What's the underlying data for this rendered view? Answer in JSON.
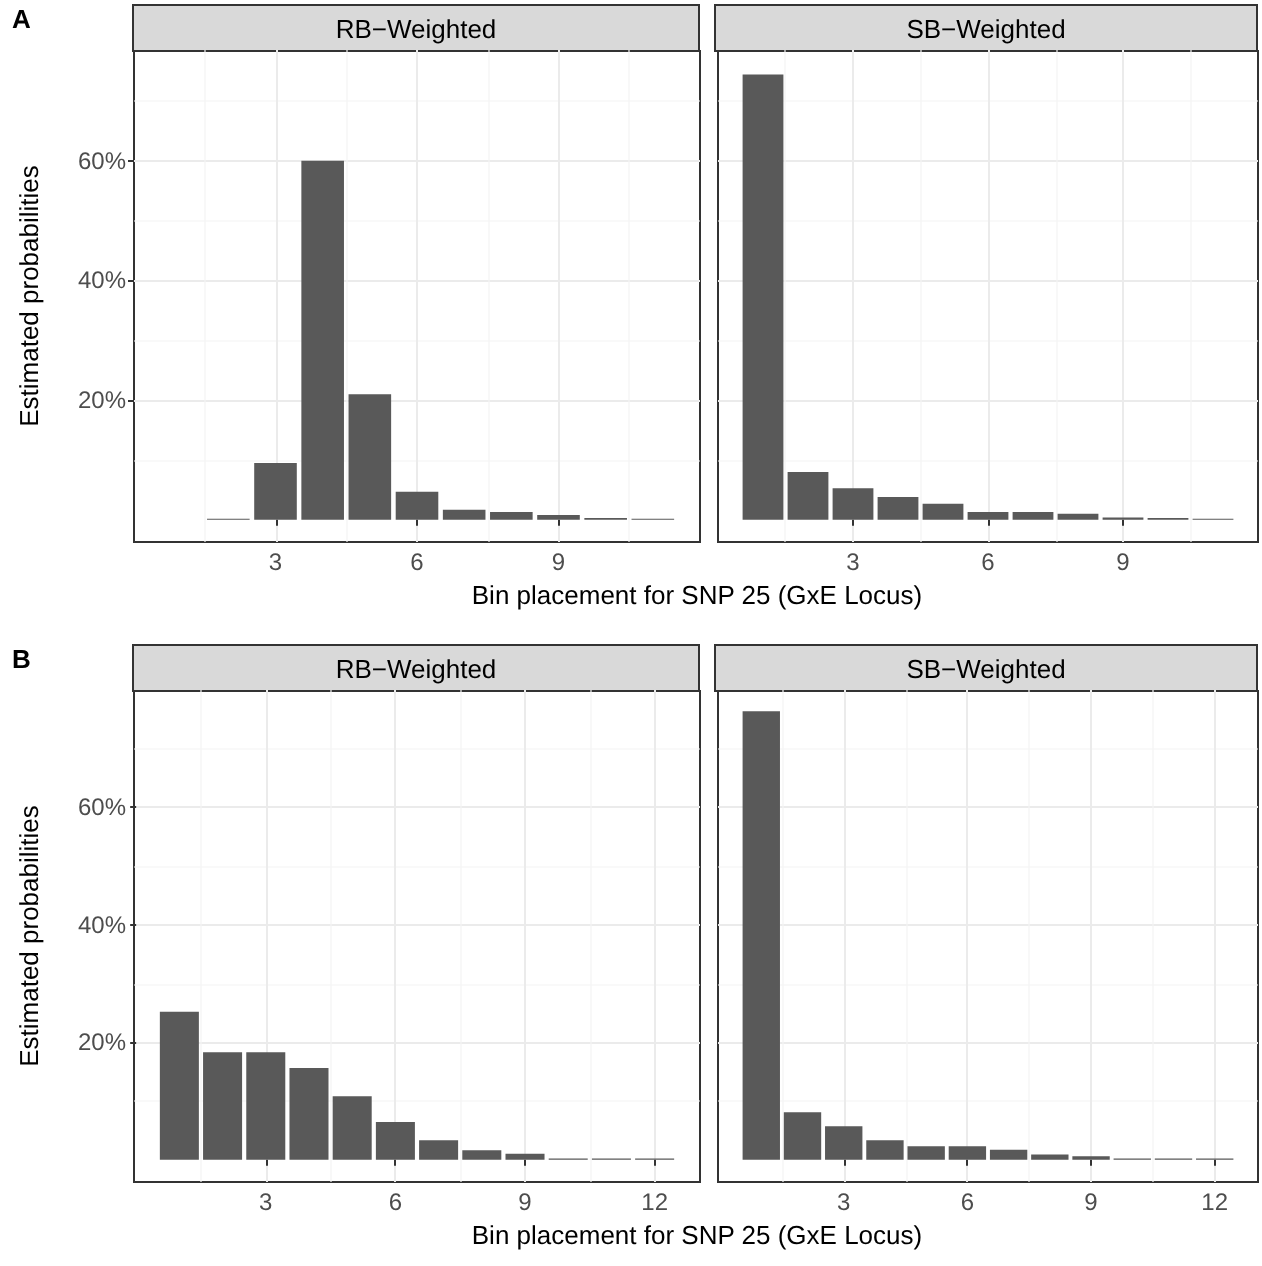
{
  "chart_data": [
    {
      "type": "bar",
      "title": "RB−Weighted",
      "xlabel": "Bin placement for SNP 25 (GxE Locus)",
      "ylabel": "Estimated probabilities",
      "annotations": [
        "A"
      ],
      "color": "#595959",
      "x": [
        2,
        3,
        4,
        5,
        6,
        7,
        8,
        9,
        10,
        11
      ],
      "values": [
        0.2,
        9.5,
        60,
        21,
        4.7,
        1.7,
        1.3,
        0.8,
        0.3,
        0.2
      ],
      "xlim": [
        0,
        12
      ],
      "xticks": [
        3,
        6,
        9
      ],
      "ylim": [
        -3.7,
        78.5
      ],
      "yticks": [
        {
          "value": 20,
          "label": "20%"
        },
        {
          "value": 40,
          "label": "40%"
        },
        {
          "value": 60,
          "label": "60%"
        }
      ],
      "grid": true
    },
    {
      "type": "bar",
      "title": "SB−Weighted",
      "color": "#595959",
      "x": [
        1,
        2,
        3,
        4,
        5,
        6,
        7,
        8,
        9,
        10,
        11
      ],
      "values": [
        74.4,
        8,
        5.3,
        3.8,
        2.7,
        1.3,
        1.3,
        1,
        0.4,
        0.3,
        0.2
      ],
      "xlim": [
        0,
        12
      ],
      "xticks": [
        3,
        6,
        9
      ],
      "ylim": [
        -3.7,
        78.5
      ],
      "yticks": [
        {
          "value": 20,
          "label": null
        },
        {
          "value": 40,
          "label": null
        },
        {
          "value": 60,
          "label": null
        }
      ],
      "grid": true,
      "tick_labels": "x"
    },
    {
      "type": "bar",
      "title": "RB−Weighted",
      "xlabel": "Bin placement for SNP 25 (GxE Locus)",
      "ylabel": "Estimated probabilities",
      "annotations": [
        "B"
      ],
      "color": "#595959",
      "x": [
        1,
        2,
        3,
        4,
        5,
        6,
        7,
        8,
        9,
        10,
        11,
        12
      ],
      "values": [
        25.2,
        18.3,
        18.3,
        15.6,
        10.8,
        6.4,
        3.3,
        1.6,
        1,
        0.2,
        0.2,
        0.2
      ],
      "xlim": [
        -0.05,
        13.05
      ],
      "xticks": [
        3,
        6,
        9,
        12
      ],
      "ylim": [
        -3.8,
        80
      ],
      "yticks": [
        {
          "value": 20,
          "label": "20%"
        },
        {
          "value": 40,
          "label": "40%"
        },
        {
          "value": 60,
          "label": "60%"
        }
      ],
      "grid": true
    },
    {
      "type": "bar",
      "title": "SB−Weighted",
      "color": "#595959",
      "x": [
        1,
        2,
        3,
        4,
        5,
        6,
        7,
        8,
        9,
        10,
        11,
        12
      ],
      "values": [
        76.4,
        8.1,
        5.7,
        3.3,
        2.3,
        2.3,
        1.7,
        0.9,
        0.6,
        0.2,
        0.2,
        0.2
      ],
      "xlim": [
        -0.05,
        13.05
      ],
      "xticks": [
        3,
        6,
        9,
        12
      ],
      "ylim": [
        -3.8,
        80
      ],
      "yticks": [
        {
          "value": 20,
          "label": null
        },
        {
          "value": 40,
          "label": null
        },
        {
          "value": 60,
          "label": null
        }
      ],
      "grid": true,
      "tick_labels": "x"
    }
  ]
}
